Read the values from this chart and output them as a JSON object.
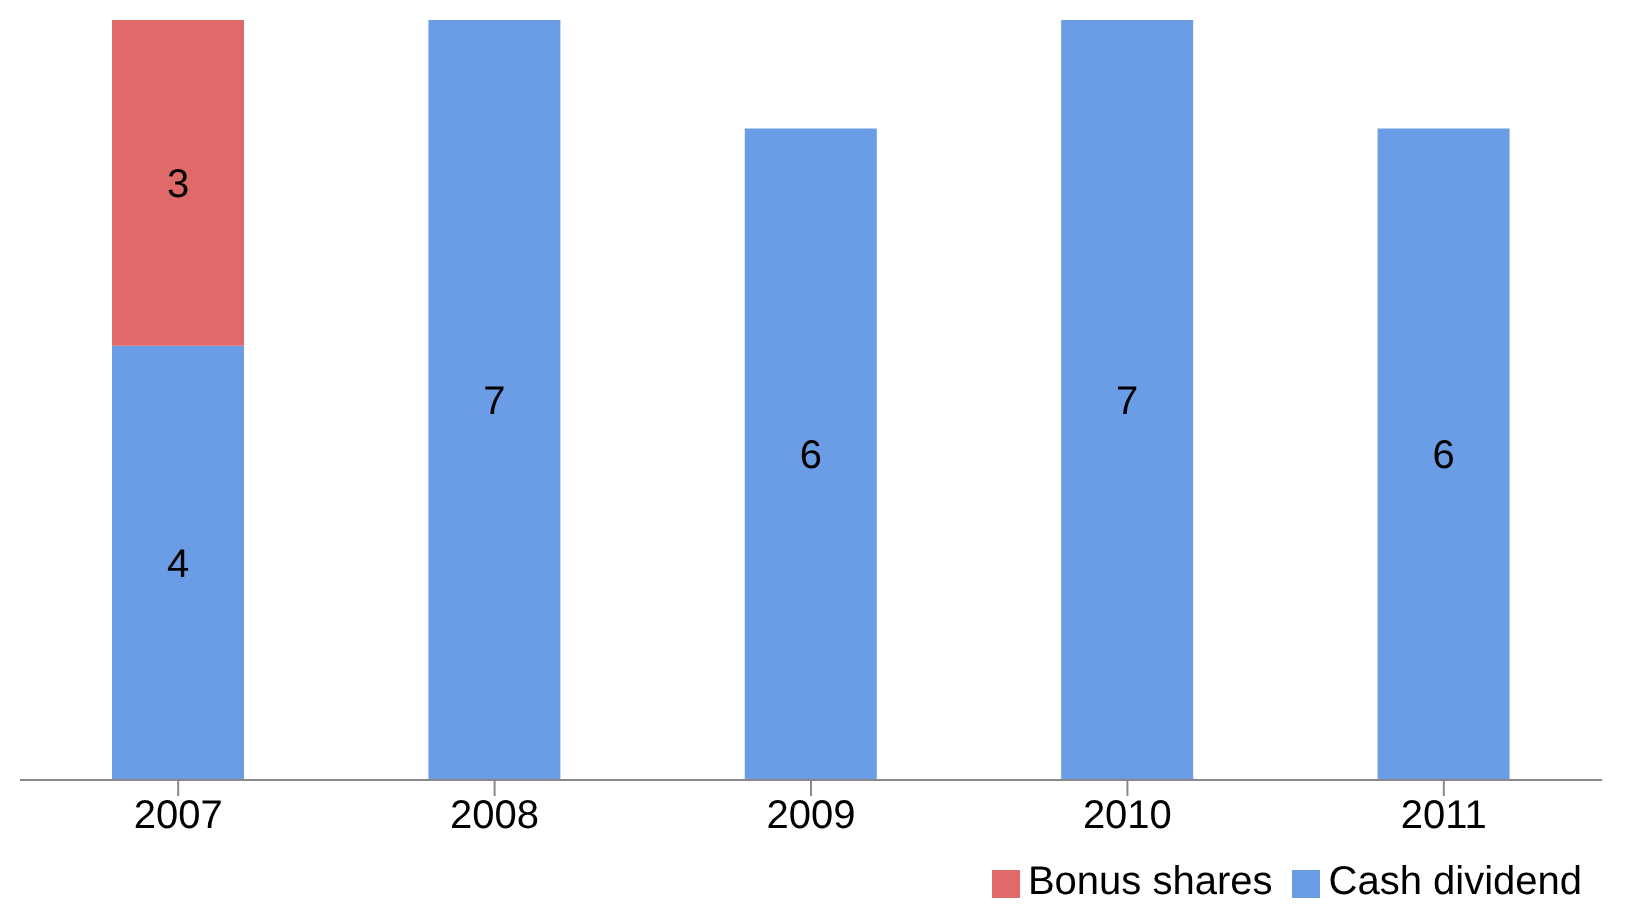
{
  "chart_data": {
    "type": "bar",
    "stacked": true,
    "data_labels": true,
    "legend": "bottom right",
    "grid": false,
    "categories": [
      "2007",
      "2008",
      "2009",
      "2010",
      "2011"
    ],
    "series": [
      {
        "name": "Cash dividend",
        "color": "#6a9de6",
        "values": [
          4,
          7,
          6,
          7,
          6
        ]
      },
      {
        "name": "Bonus shares",
        "color": "#e06a6a",
        "values": [
          3,
          null,
          null,
          null,
          null
        ]
      }
    ]
  }
}
